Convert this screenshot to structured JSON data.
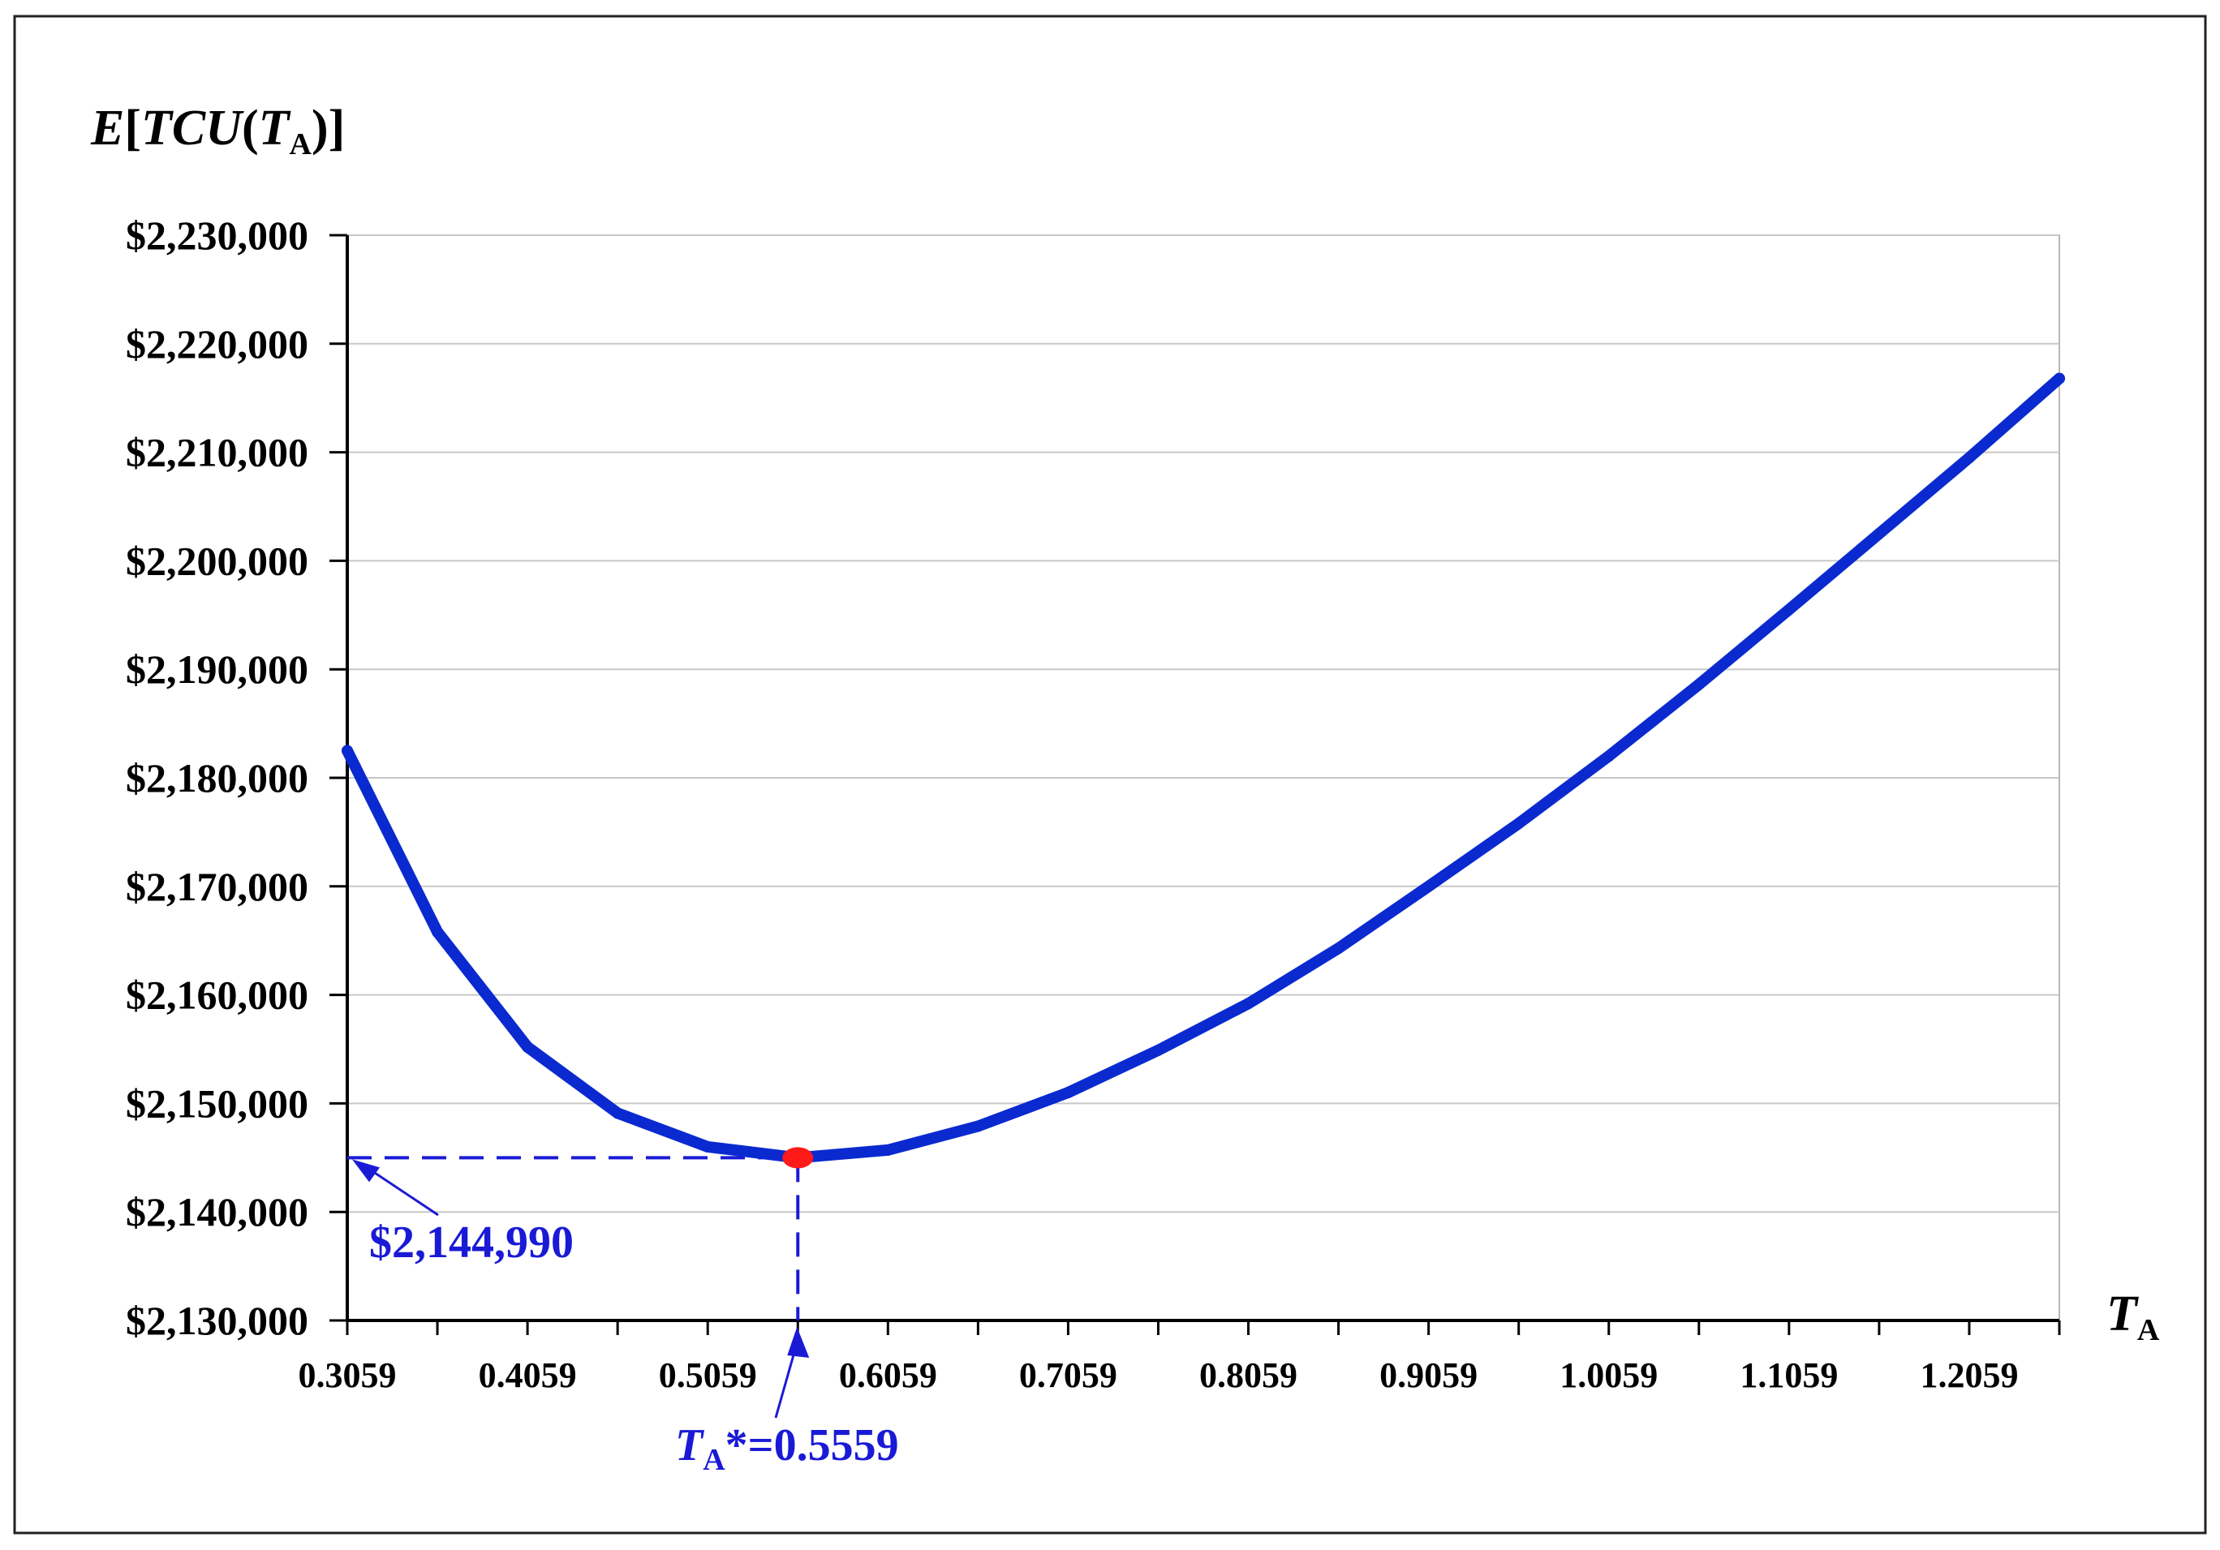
{
  "chart_data": {
    "type": "line",
    "ylabel_parts": [
      "E",
      "[",
      "TCU",
      "(",
      "T",
      "A",
      ")]"
    ],
    "xlabel_parts": [
      "T",
      "A"
    ],
    "ylim": [
      2130000,
      2230000
    ],
    "xlim": [
      0.3059,
      1.2559
    ],
    "y_ticks": [
      "$2,130,000",
      "$2,140,000",
      "$2,150,000",
      "$2,160,000",
      "$2,170,000",
      "$2,180,000",
      "$2,190,000",
      "$2,200,000",
      "$2,210,000",
      "$2,220,000",
      "$2,230,000"
    ],
    "x_ticks": [
      "0.3059",
      "0.4059",
      "0.5059",
      "0.6059",
      "0.7059",
      "0.8059",
      "0.9059",
      "1.0059",
      "1.1059",
      "1.2059"
    ],
    "grid": true,
    "series": [
      {
        "name": "E[TCU(TA)]",
        "color": "#0a2ad0",
        "x": [
          0.3059,
          0.3559,
          0.4059,
          0.4559,
          0.5059,
          0.5559,
          0.6059,
          0.6559,
          0.7059,
          0.7559,
          0.8059,
          0.8559,
          0.9059,
          0.9559,
          1.0059,
          1.0559,
          1.1059,
          1.1559,
          1.2059,
          1.2559
        ],
        "y": [
          2182500,
          2165800,
          2155200,
          2149100,
          2146000,
          2144990,
          2145700,
          2147900,
          2151000,
          2154900,
          2159200,
          2164300,
          2170000,
          2175800,
          2182000,
          2188600,
          2195500,
          2202500,
          2209500,
          2216800
        ]
      }
    ],
    "optimum": {
      "x": 0.5559,
      "y": 2144990,
      "color": "#ff1a1a"
    },
    "annotations": {
      "y_value_label": "$2,144,990",
      "x_value_prefix": "T",
      "x_value_sub": "A",
      "x_value_suffix": "*=0.5559",
      "color": "#1a1ad6"
    }
  }
}
